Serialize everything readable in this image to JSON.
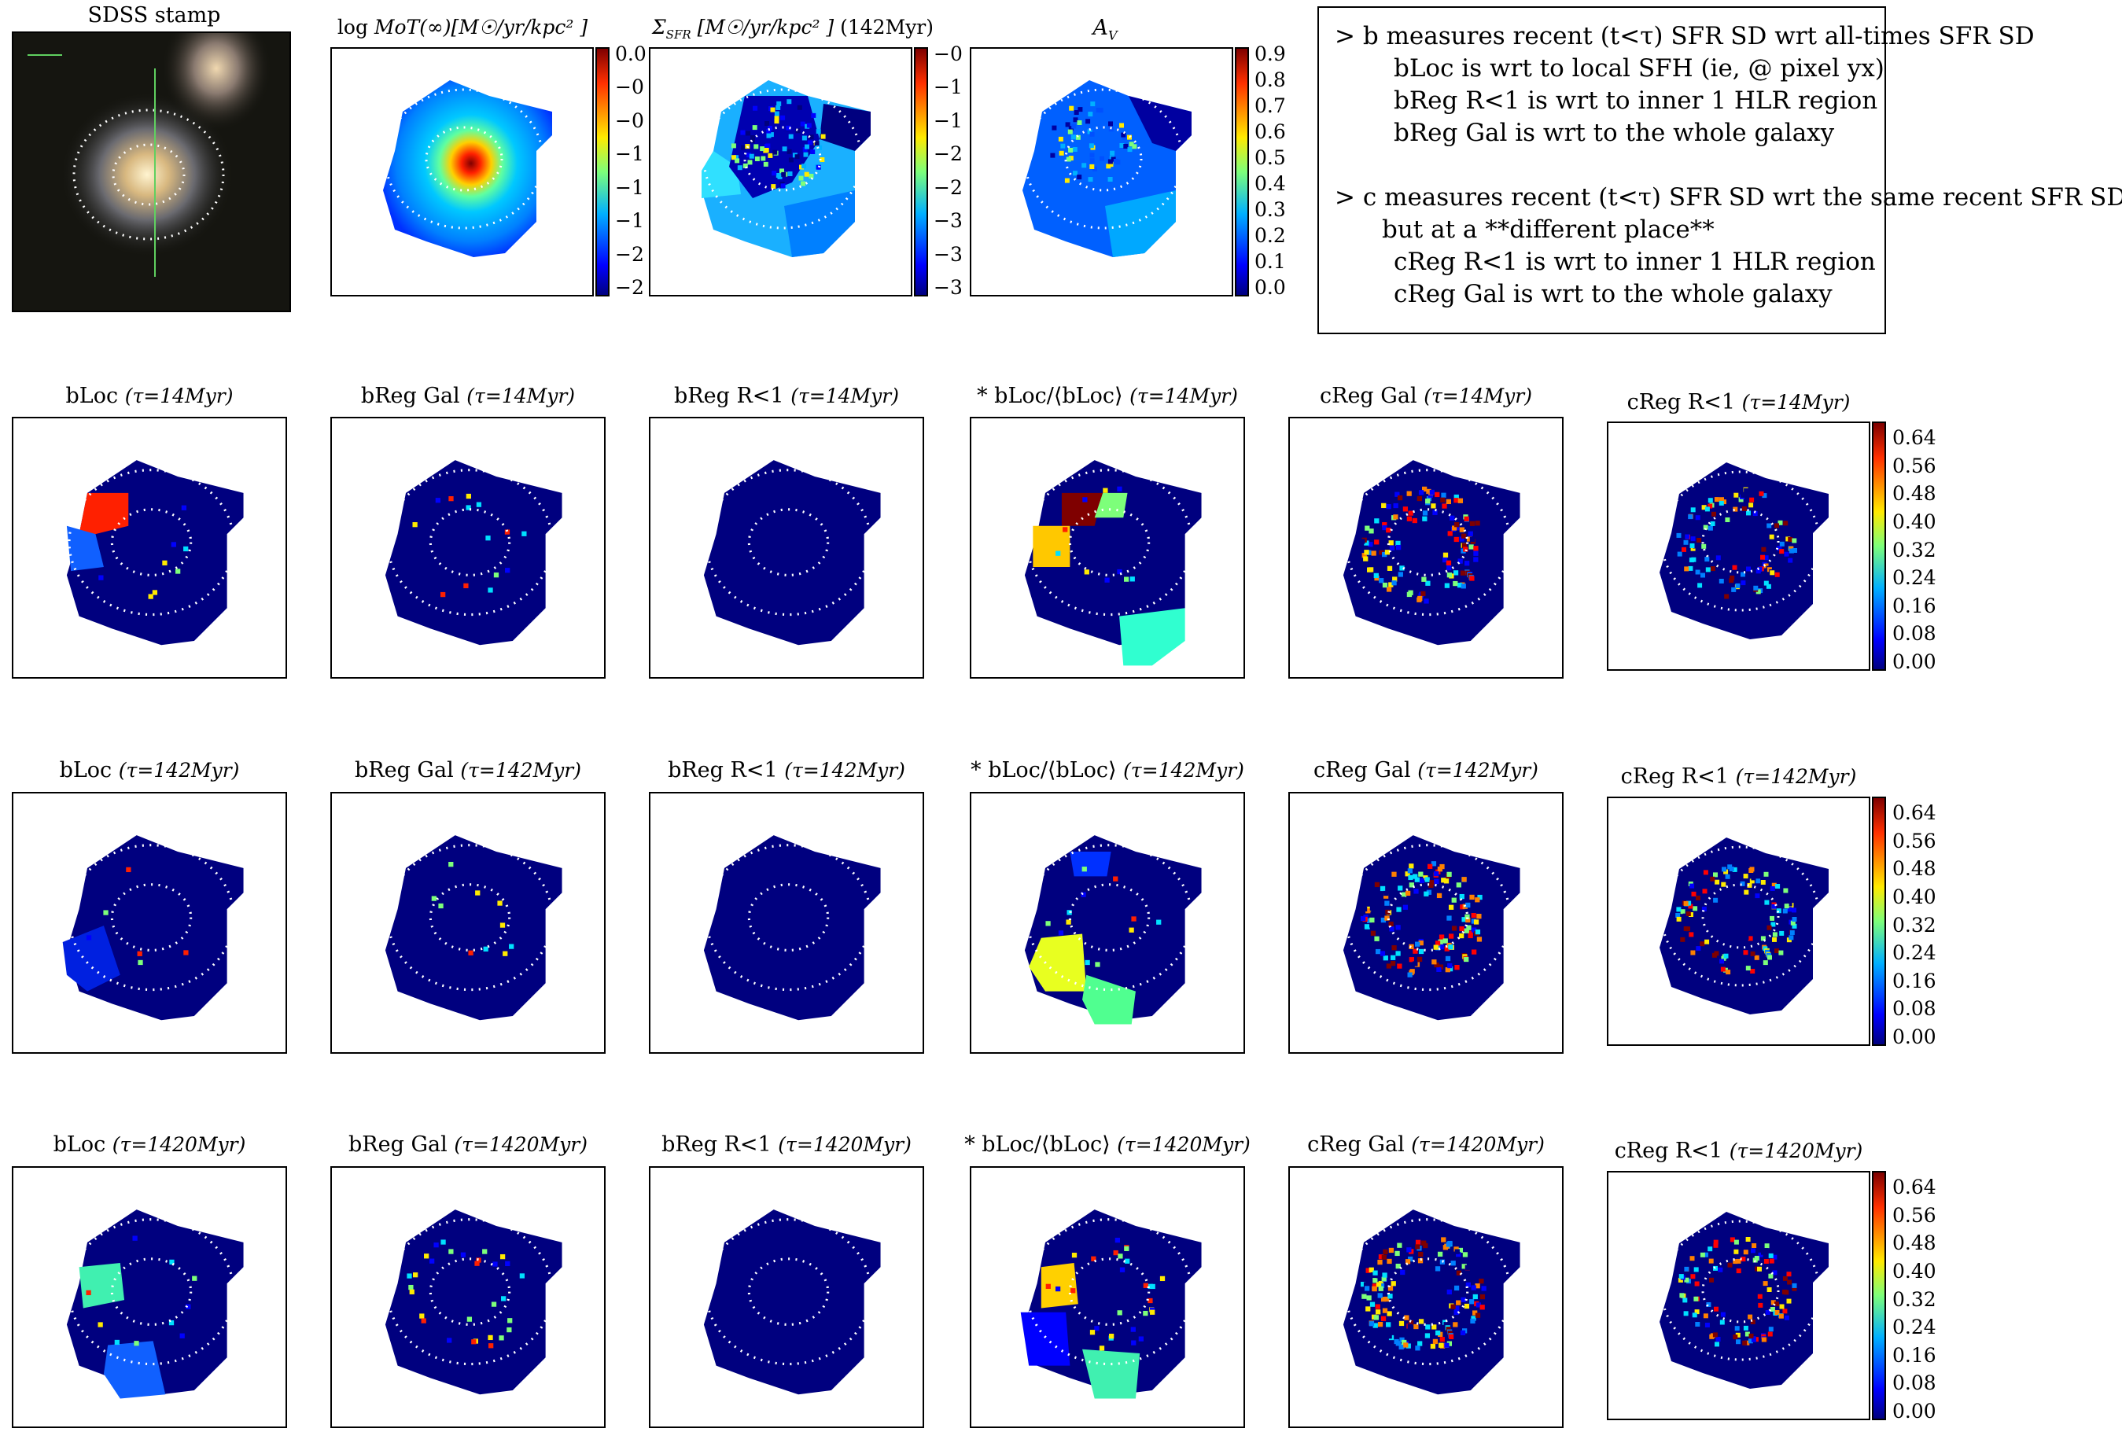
{
  "panels_top": {
    "sdss": {
      "title": "SDSS stamp"
    },
    "mot": {
      "title_main": "log ",
      "title_ital": "MoT(∞)[M☉/yr/kpc² ]",
      "ticks": [
        "0.0",
        "−0",
        "−0",
        "−1",
        "−1",
        "−1",
        "−2",
        "−2"
      ]
    },
    "sfr": {
      "title_ital": "Σ",
      "title_sub": "SFR",
      "title_rest": " [M☉/yr/kpc² ]",
      "title_tail": " (142Myr)",
      "ticks": [
        "−0",
        "−1",
        "−1",
        "−2",
        "−2",
        "−3",
        "−3",
        "−3"
      ]
    },
    "av": {
      "title": "A",
      "title_sub": "V",
      "ticks": [
        "0.9",
        "0.8",
        "0.7",
        "0.6",
        "0.5",
        "0.4",
        "0.3",
        "0.2",
        "0.1",
        "0.0"
      ]
    }
  },
  "notes": {
    "lines": [
      "> b measures recent (t<τ) SFR SD wrt all-times SFR SD",
      "bLoc is wrt to local SFH (ie, @ pixel yx)",
      "bReg R<1 is wrt to inner 1 HLR region",
      "bReg Gal is wrt to the whole galaxy",
      "> c measures recent (t<τ) SFR SD wrt the same recent SFR SD",
      "but at a **different place**",
      "cReg R<1 is wrt to inner 1 HLR region",
      "cReg Gal is wrt to the whole galaxy"
    ]
  },
  "rows": [
    {
      "tau": "(τ=14Myr)"
    },
    {
      "tau": "(τ=142Myr)"
    },
    {
      "tau": "(τ=1420Myr)"
    }
  ],
  "row_titles": [
    "bLoc",
    "bReg Gal",
    "bReg R<1",
    "* bLoc/⟨bLoc⟩",
    "cReg Gal",
    "cReg R<1"
  ],
  "colorbar_ticks": [
    "0.64",
    "0.56",
    "0.48",
    "0.40",
    "0.32",
    "0.24",
    "0.16",
    "0.08",
    "0.00"
  ],
  "chart_data": {
    "type": "heatmap",
    "colormap": "jet",
    "colorbar_range": [
      0.0,
      0.68
    ],
    "grid": false,
    "panels": [
      "SDSS stamp",
      "log MoT(∞)[M☉/yr/kpc²]",
      "ΣSFR [M☉/yr/kpc²] (142Myr)",
      "A_V",
      "bLoc",
      "bReg Gal",
      "bReg R<1",
      "* bLoc/⟨bLoc⟩",
      "cReg Gal",
      "cReg R<1"
    ],
    "tau_values": [
      "14Myr",
      "142Myr",
      "1420Myr"
    ],
    "av_colorbar_range": [
      0.0,
      0.95
    ]
  }
}
